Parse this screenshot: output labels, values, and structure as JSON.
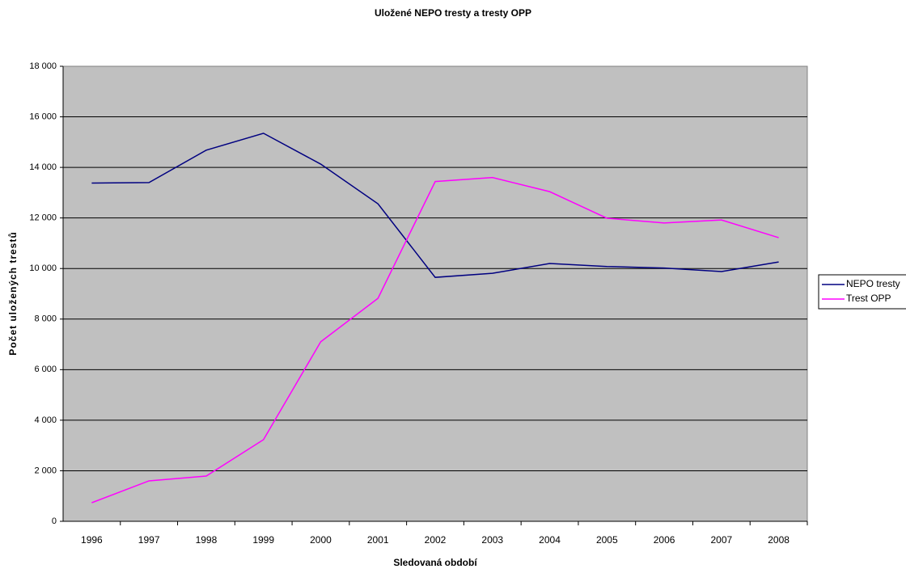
{
  "chart_data": {
    "type": "line",
    "title": "Uložené NEPO tresty a tresty OPP",
    "x_label": "Sledovaná období",
    "y_label": "Počet uložených trestů",
    "categories": [
      "1996",
      "1997",
      "1998",
      "1999",
      "2000",
      "2001",
      "2002",
      "2003",
      "2004",
      "2005",
      "2006",
      "2007",
      "2008"
    ],
    "series": [
      {
        "name": "NEPO tresty",
        "color": "#000080",
        "values": [
          13380,
          13400,
          14680,
          15350,
          14130,
          12560,
          9650,
          9810,
          10200,
          10080,
          10020,
          9880,
          10260
        ]
      },
      {
        "name": "Trest OPP",
        "color": "#ff00ff",
        "values": [
          735,
          1600,
          1790,
          3230,
          7100,
          8820,
          13440,
          13600,
          13040,
          11990,
          11800,
          11920,
          11220
        ]
      }
    ],
    "ylim": [
      0,
      18000
    ],
    "yticks": [
      0,
      {
        "value": 2000,
        "label": "2 000"
      },
      {
        "value": 4000,
        "label": "4 000"
      },
      {
        "value": 6000,
        "label": "6 000"
      },
      {
        "value": 8000,
        "label": "8 000"
      },
      {
        "value": 10000,
        "label": "10 000"
      },
      {
        "value": 12000,
        "label": "12 000"
      },
      {
        "value": 14000,
        "label": "14 000"
      },
      {
        "value": 16000,
        "label": "16 000"
      },
      {
        "value": 18000,
        "label": "18 000"
      }
    ],
    "grid": true,
    "legend": "right"
  }
}
